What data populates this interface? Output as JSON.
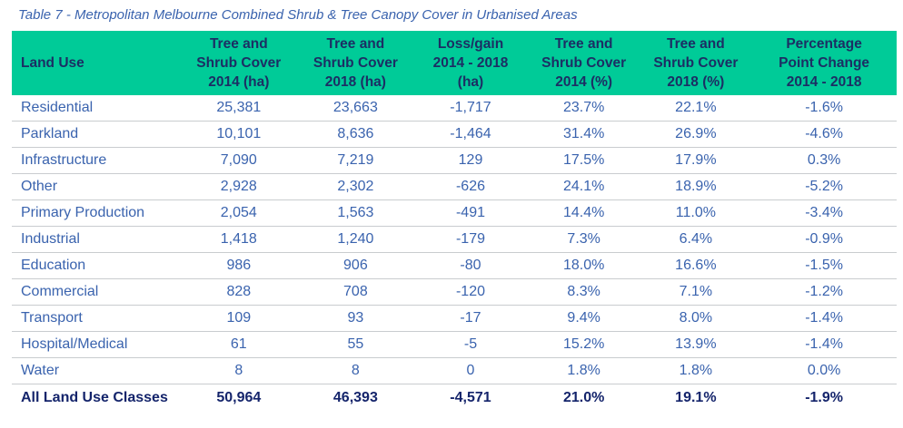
{
  "title": "Table 7 - Metropolitan Melbourne Combined Shrub & Tree Canopy Cover in Urbanised Areas",
  "colors": {
    "background": "#FFFFFF",
    "header_bg": "#00CB98",
    "header_text": "#1C2E64",
    "body_text": "#3A63AE",
    "total_text": "#14246B",
    "divider": "#C9CCCF",
    "title_text": "#3A63AE"
  },
  "table": {
    "columns": [
      {
        "id": "land_use",
        "label": "Land Use"
      },
      {
        "id": "cover_2014_ha",
        "label": "Tree and\nShrub Cover\n2014 (ha)"
      },
      {
        "id": "cover_2018_ha",
        "label": "Tree and\nShrub Cover\n2018 (ha)"
      },
      {
        "id": "loss_gain_ha",
        "label": "Loss/gain\n2014 - 2018\n(ha)"
      },
      {
        "id": "cover_2014_pct",
        "label": "Tree and\nShrub Cover\n2014 (%)"
      },
      {
        "id": "cover_2018_pct",
        "label": "Tree and\nShrub Cover\n2018 (%)"
      },
      {
        "id": "pp_change",
        "label": "Percentage\nPoint Change\n2014 - 2018"
      }
    ],
    "rows": [
      [
        "Residential",
        "25,381",
        "23,663",
        "-1,717",
        "23.7%",
        "22.1%",
        "-1.6%"
      ],
      [
        "Parkland",
        "10,101",
        "8,636",
        "-1,464",
        "31.4%",
        "26.9%",
        "-4.6%"
      ],
      [
        "Infrastructure",
        "7,090",
        "7,219",
        "129",
        "17.5%",
        "17.9%",
        "0.3%"
      ],
      [
        "Other",
        "2,928",
        "2,302",
        "-626",
        "24.1%",
        "18.9%",
        "-5.2%"
      ],
      [
        "Primary Production",
        "2,054",
        "1,563",
        "-491",
        "14.4%",
        "11.0%",
        "-3.4%"
      ],
      [
        "Industrial",
        "1,418",
        "1,240",
        "-179",
        "7.3%",
        "6.4%",
        "-0.9%"
      ],
      [
        "Education",
        "986",
        "906",
        "-80",
        "18.0%",
        "16.6%",
        "-1.5%"
      ],
      [
        "Commercial",
        "828",
        "708",
        "-120",
        "8.3%",
        "7.1%",
        "-1.2%"
      ],
      [
        "Transport",
        "109",
        "93",
        "-17",
        "9.4%",
        "8.0%",
        "-1.4%"
      ],
      [
        "Hospital/Medical",
        "61",
        "55",
        "-5",
        "15.2%",
        "13.9%",
        "-1.4%"
      ],
      [
        "Water",
        "8",
        "8",
        "0",
        "1.8%",
        "1.8%",
        "0.0%"
      ]
    ],
    "total_row": [
      "All Land Use Classes",
      "50,964",
      "46,393",
      "-4,571",
      "21.0%",
      "19.1%",
      "-1.9%"
    ]
  }
}
